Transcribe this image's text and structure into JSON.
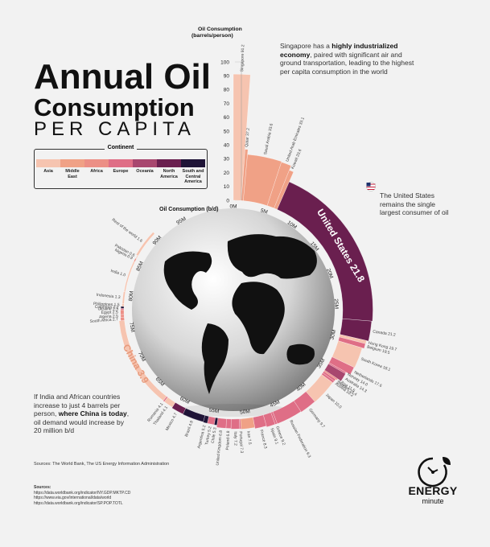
{
  "title": {
    "line1": "Annual Oil",
    "line2": "Consumption",
    "line3": "PER CAPITA"
  },
  "legend": {
    "title": "Continent",
    "items": [
      {
        "label": "Asia",
        "color": "#f6c4b0"
      },
      {
        "label": "Middle East",
        "color": "#f0a186"
      },
      {
        "label": "Africa",
        "color": "#ec8f86"
      },
      {
        "label": "Europe",
        "color": "#df6e86"
      },
      {
        "label": "Oceania",
        "color": "#a8476f"
      },
      {
        "label": "North America",
        "color": "#6a1f4f"
      },
      {
        "label": "South and Central America",
        "color": "#1f1437"
      }
    ]
  },
  "notes": {
    "singapore_pre": "Singapore has a ",
    "singapore_bold": "highly industrialized economy",
    "singapore_post": ", paired with significant air and ground transportation, leading to the highest per capita consumption in the world",
    "us": "The United States remains the single largest consumer of oil",
    "india_pre": "If India and African countries increase to just 4 barrels per person, ",
    "india_bold": "where China is today",
    "india_post": ", oil demand would increase by 20 million b/d"
  },
  "sources": {
    "line": "Sources: The World Bank, The US Energy Information Administration",
    "label": "Sources:",
    "urls": [
      "https://data.worldbank.org/indicator/NY.GDP.MKTP.CD",
      "https://www.eia.gov/international/data/world",
      "https://data.worldbank.org/indicator/SP.POP.TOTL"
    ]
  },
  "brand": {
    "line1": "ENERGY",
    "line2": "minute"
  },
  "chart_data": {
    "type": "bar",
    "layout": "radial",
    "x_label": "Oil Consumption (b/d)",
    "y_label": "Oil Consumption (barrels/person)",
    "y_ticks": [
      0,
      10,
      20,
      30,
      40,
      50,
      60,
      70,
      80,
      90,
      100
    ],
    "x_ticks": [
      "0M",
      "5M",
      "10M",
      "15M",
      "20M",
      "25M",
      "30M",
      "35M",
      "40M",
      "45M",
      "50M",
      "55M",
      "60M",
      "65M",
      "70M",
      "75M",
      "80M",
      "85M",
      "90M",
      "95M"
    ],
    "categories": [
      "Singapore",
      "Qatar",
      "Saudi Arabia",
      "United Arab Emirates",
      "Kuwait",
      "United States",
      "Canada",
      "Hong Kong",
      "Belgium",
      "South Korea",
      "Netherlands",
      "Norway",
      "Australia",
      "Libya",
      "Sweden",
      "Austria",
      "Japan",
      "Germany",
      "Russian Federation",
      "Greece",
      "Spain",
      "France",
      "Iran",
      "Portugal",
      "Italy",
      "Poland",
      "United Kingdom",
      "Chile",
      "Turkey",
      "Argentina",
      "Brazil",
      "Mexico",
      "Thailand",
      "Romania",
      "China",
      "South Africa",
      "Algeria",
      "Egypt",
      "Ukraine",
      "Colombia",
      "Philippines",
      "Indonesia",
      "India",
      "Nigeria",
      "Pakistan",
      "Rest of the world"
    ],
    "value_labels": [
      "91.2",
      "37.2",
      "33.6",
      "33.1",
      "29.6",
      "21.8",
      "21.2",
      "19.7",
      "19.5",
      "18.1",
      "17.6",
      "14.0",
      "14.3",
      "11.5",
      "10.4",
      "10.2",
      "10.0",
      "9.7",
      "9.3",
      "9.2",
      "9.1",
      "8.3",
      "7.5",
      "7.3",
      "7.2",
      "6.8",
      "6.8",
      "5.3",
      "5.2",
      "5.2",
      "4.9",
      "4.7",
      "4.1",
      "4.1",
      "3.9",
      "2.7",
      "2.5",
      "2.5",
      "2.3",
      "2.2",
      "1.5",
      "1.3",
      "1.0",
      "0.9",
      "0.6",
      "1.6"
    ],
    "values": [
      91.2,
      37.2,
      33.6,
      33.1,
      29.6,
      21.8,
      21.2,
      19.7,
      19.5,
      18.1,
      17.6,
      14.0,
      14.3,
      11.5,
      10.4,
      10.2,
      10.0,
      9.7,
      9.3,
      9.2,
      9.1,
      8.3,
      7.5,
      7.3,
      7.2,
      6.8,
      6.8,
      5.3,
      5.2,
      5.2,
      4.9,
      4.7,
      4.1,
      4.1,
      3.9,
      2.7,
      2.5,
      2.5,
      2.3,
      2.2,
      1.5,
      1.3,
      1.0,
      0.9,
      0.6,
      1.6
    ],
    "continents": [
      "Asia",
      "Middle East",
      "Middle East",
      "Middle East",
      "Middle East",
      "North America",
      "North America",
      "Asia",
      "Europe",
      "Asia",
      "Europe",
      "Europe",
      "Oceania",
      "Africa",
      "Europe",
      "Europe",
      "Asia",
      "Europe",
      "Europe",
      "Europe",
      "Europe",
      "Europe",
      "Middle East",
      "Europe",
      "Europe",
      "Europe",
      "Europe",
      "South and Central America",
      "Europe",
      "South and Central America",
      "South and Central America",
      "North America",
      "Asia",
      "Europe",
      "Asia",
      "Africa",
      "Africa",
      "Africa",
      "Europe",
      "South and Central America",
      "Asia",
      "Asia",
      "Asia",
      "Africa",
      "Asia",
      "Asia"
    ],
    "widths_mb": [
      1.2,
      0.3,
      3.7,
      1.1,
      0.5,
      20.5,
      2.4,
      0.4,
      0.6,
      2.6,
      1.0,
      0.2,
      1.1,
      0.2,
      0.3,
      0.3,
      3.5,
      2.3,
      3.6,
      0.3,
      1.2,
      1.6,
      1.9,
      0.2,
      1.2,
      0.7,
      1.3,
      0.4,
      1.0,
      0.6,
      3.1,
      1.8,
      1.4,
      0.2,
      13.5,
      0.5,
      0.4,
      0.7,
      0.2,
      0.3,
      0.4,
      1.8,
      4.8,
      0.5,
      0.5,
      4.2
    ]
  }
}
